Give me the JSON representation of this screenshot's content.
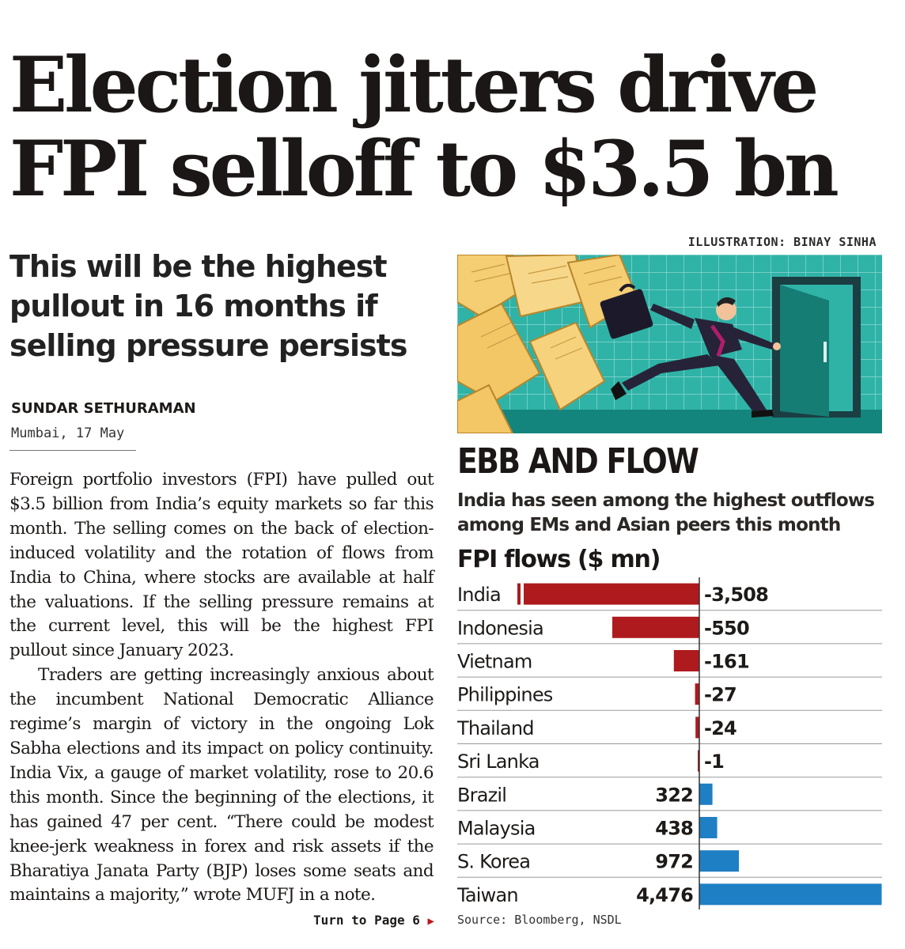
{
  "article": {
    "headline": "Election jitters drive FPI selloff to $3.5 bn",
    "deck": "This will be the highest pullout in 16 months if selling pressure persists",
    "byline": "SUNDAR SETHURAMAN",
    "dateline": "Mumbai, 17 May",
    "paragraphs": [
      "Foreign portfolio investors (FPI) have pulled out $3.5 billion from India’s equity markets so far this month. The selling comes on the back of election-induced volatility and the rotation of flows from India to China, where stocks are available at half the valuations. If the selling pressure remains at the current level, this will be the highest FPI pullout since January 2023.",
      "Traders are getting increasingly anxious about the incumbent National Democratic Alliance regime’s margin of victory in the ongoing Lok Sabha elections and its impact on policy continuity. India Vix, a gauge of market volatility, rose to 20.6 this month. Since the beginning of the elections, it has gained 47 per cent. “There could be modest knee-jerk weakness in forex and risk assets if the Bharatiya Janata Party (BJP) loses some seats and maintains a majority,” wrote MUFJ in a note."
    ],
    "turn_label": "Turn to Page 6"
  },
  "illustration": {
    "credit": "ILLUSTRATION: BINAY SINHA",
    "icon": "man-running-with-briefcase-icon"
  },
  "sidebar": {
    "title": "EBB AND FLOW",
    "subtitle": "India has seen among the highest outflows among EMs and Asian peers this month",
    "source": "Source: Bloomberg, NSDL"
  },
  "chart_data": {
    "type": "bar",
    "orientation": "horizontal",
    "title": "FPI flows ($ mn)",
    "categories": [
      "India",
      "Indonesia",
      "Vietnam",
      "Philippines",
      "Thailand",
      "Sri Lanka",
      "Brazil",
      "Malaysia",
      "S. Korea",
      "Taiwan"
    ],
    "values": [
      -3508,
      -550,
      -161,
      -27,
      -24,
      -1,
      322,
      438,
      972,
      4476
    ],
    "value_labels": [
      "-3,508",
      "-550",
      "-161",
      "-27",
      "-24",
      "-1",
      "322",
      "438",
      "972",
      "4,476"
    ],
    "india_axis_break": true,
    "colors": {
      "negative": "#ae1a1d",
      "positive": "#1f7fc4",
      "baseline": "#333333",
      "row_rule": "#9a9a9a"
    }
  }
}
